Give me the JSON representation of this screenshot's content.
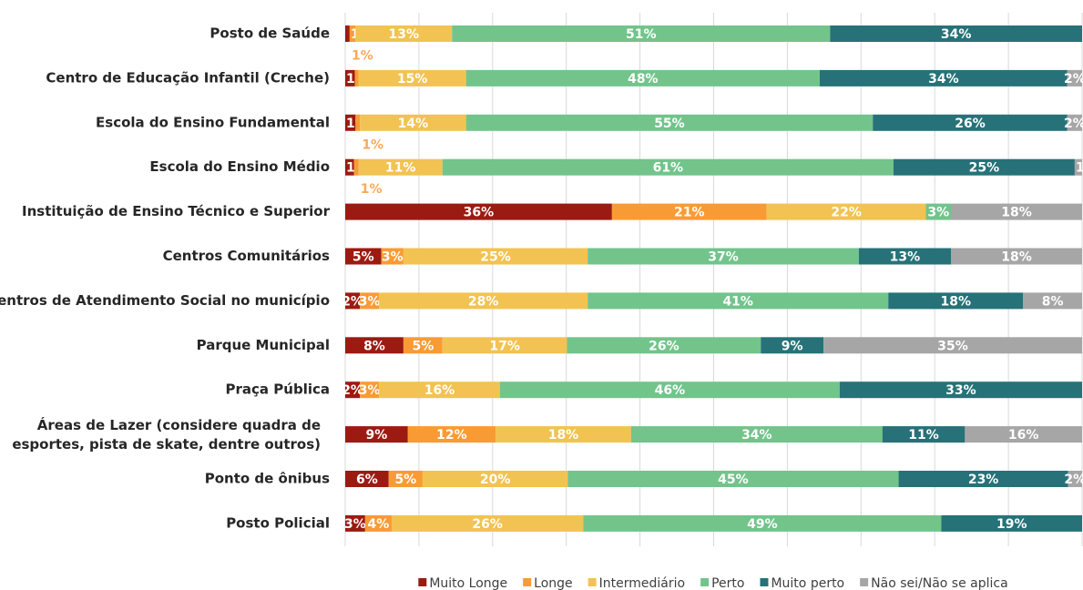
{
  "chart_data": {
    "type": "bar",
    "orientation": "horizontal",
    "stacked": true,
    "categories": [
      "Posto de Saúde",
      "Centro de Educação Infantil (Creche)",
      "Escola do Ensino Fundamental",
      "Escola do Ensino Médio",
      "Instituição de Ensino Técnico e Superior",
      "Centros Comunitários",
      "Centros de Atendimento Social no município",
      "Parque Municipal",
      "Praça Pública",
      "Áreas de Lazer (considere quadra de esportes, pista de skate, dentre outros)",
      "Ponto de ônibus",
      "Posto Policial"
    ],
    "series": [
      {
        "name": "Muito Longe",
        "color": "#9b1b12",
        "values": [
          0.6,
          1.3,
          1.4,
          1.2,
          36.2,
          4.9,
          2.0,
          7.9,
          2.0,
          8.5,
          5.9,
          2.7
        ],
        "value_labels": [
          "1%",
          "1%",
          "1%",
          "1%",
          "36%",
          "5%",
          "2%",
          "8%",
          "2%",
          "9%",
          "6%",
          "3%"
        ]
      },
      {
        "name": "Longe",
        "color": "#f99b35",
        "values": [
          0.8,
          0.5,
          0.6,
          0.6,
          21.0,
          3.0,
          2.6,
          5.3,
          2.6,
          11.9,
          4.6,
          3.6
        ],
        "value_labels": [
          "1%",
          null,
          "1%",
          "1%",
          "21%",
          "3%",
          "3%",
          "5%",
          "3%",
          "12%",
          "5%",
          "4%"
        ]
      },
      {
        "name": "Intermediário",
        "color": "#f2c352",
        "values": [
          13.1,
          14.6,
          14.4,
          11.4,
          21.6,
          25.0,
          28.3,
          16.9,
          16.4,
          18.4,
          19.7,
          26.0
        ],
        "value_labels": [
          "13%",
          "15%",
          "14%",
          "11%",
          "22%",
          "25%",
          "28%",
          "17%",
          "16%",
          "18%",
          "20%",
          "26%"
        ]
      },
      {
        "name": "Perto",
        "color": "#72c48b",
        "values": [
          51.3,
          48.0,
          55.2,
          61.2,
          3.4,
          36.8,
          40.8,
          26.3,
          46.1,
          34.1,
          44.9,
          48.6
        ],
        "value_labels": [
          "51%",
          "48%",
          "55%",
          "61%",
          "3%",
          "37%",
          "41%",
          "26%",
          "46%",
          "34%",
          "45%",
          "49%"
        ]
      },
      {
        "name": "Muito perto",
        "color": "#267278",
        "values": [
          34.2,
          33.6,
          26.4,
          24.6,
          null,
          12.5,
          18.3,
          8.5,
          32.9,
          11.2,
          23.0,
          19.1
        ],
        "value_labels": [
          "34%",
          "34%",
          "26%",
          "25%",
          null,
          "13%",
          "18%",
          "9%",
          "33%",
          "11%",
          "23%",
          "19%"
        ]
      },
      {
        "name": "Não sei/Não se aplica",
        "color": "#a6a6a6",
        "values": [
          null,
          2.0,
          2.0,
          1.0,
          17.8,
          17.8,
          8.0,
          35.1,
          null,
          15.9,
          1.9,
          null
        ],
        "value_labels": [
          null,
          "2%",
          "2%",
          "1%",
          "18%",
          "18%",
          "8%",
          "35%",
          null,
          "16%",
          "2%",
          null
        ]
      }
    ],
    "xlim": [
      0,
      100
    ],
    "xticks": [
      0,
      10,
      20,
      30,
      40,
      50,
      60,
      70,
      80,
      90,
      100
    ],
    "grid": true,
    "legend": "bottom"
  }
}
